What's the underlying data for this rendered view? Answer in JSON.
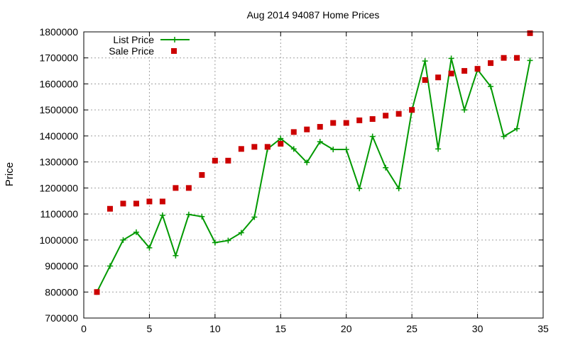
{
  "chart_data": {
    "type": "line",
    "title": "Aug 2014 94087 Home Prices",
    "xlabel": "",
    "ylabel": "Price",
    "xlim": [
      0,
      35
    ],
    "ylim": [
      700000,
      1800000
    ],
    "xticks": [
      0,
      5,
      10,
      15,
      20,
      25,
      30,
      35
    ],
    "yticks": [
      700000,
      800000,
      900000,
      1000000,
      1100000,
      1200000,
      1300000,
      1400000,
      1500000,
      1600000,
      1700000,
      1800000
    ],
    "grid": true,
    "legend_position": "top-left",
    "series": [
      {
        "name": "List Price",
        "style": "line-with-plus-markers",
        "color": "#009900",
        "x": [
          1,
          2,
          3,
          4,
          5,
          6,
          7,
          8,
          9,
          10,
          11,
          12,
          13,
          14,
          15,
          16,
          17,
          18,
          19,
          20,
          21,
          22,
          23,
          24,
          25,
          26,
          27,
          28,
          29,
          30,
          31,
          32,
          33,
          34
        ],
        "y": [
          800000,
          900000,
          1000000,
          1030000,
          970000,
          1095000,
          940000,
          1098000,
          1090000,
          990000,
          998000,
          1028000,
          1088000,
          1350000,
          1390000,
          1350000,
          1298000,
          1378000,
          1348000,
          1348000,
          1198000,
          1398000,
          1278000,
          1198000,
          1498000,
          1688000,
          1350000,
          1698000,
          1500000,
          1655000,
          1590000,
          1398000,
          1428000,
          1690000
        ]
      },
      {
        "name": "Sale Price",
        "style": "square-markers",
        "color": "#cc0000",
        "x": [
          1,
          2,
          3,
          4,
          5,
          6,
          7,
          8,
          9,
          10,
          11,
          12,
          13,
          14,
          15,
          16,
          17,
          18,
          19,
          20,
          21,
          22,
          23,
          24,
          25,
          26,
          27,
          28,
          29,
          30,
          31,
          32,
          33,
          34
        ],
        "y": [
          800000,
          1120000,
          1140000,
          1140000,
          1148000,
          1148000,
          1200000,
          1200000,
          1250000,
          1305000,
          1305000,
          1350000,
          1358000,
          1358000,
          1370000,
          1415000,
          1425000,
          1435000,
          1450000,
          1450000,
          1460000,
          1465000,
          1478000,
          1485000,
          1500000,
          1615000,
          1625000,
          1640000,
          1650000,
          1658000,
          1680000,
          1700000,
          1700000,
          1795000
        ]
      }
    ]
  }
}
